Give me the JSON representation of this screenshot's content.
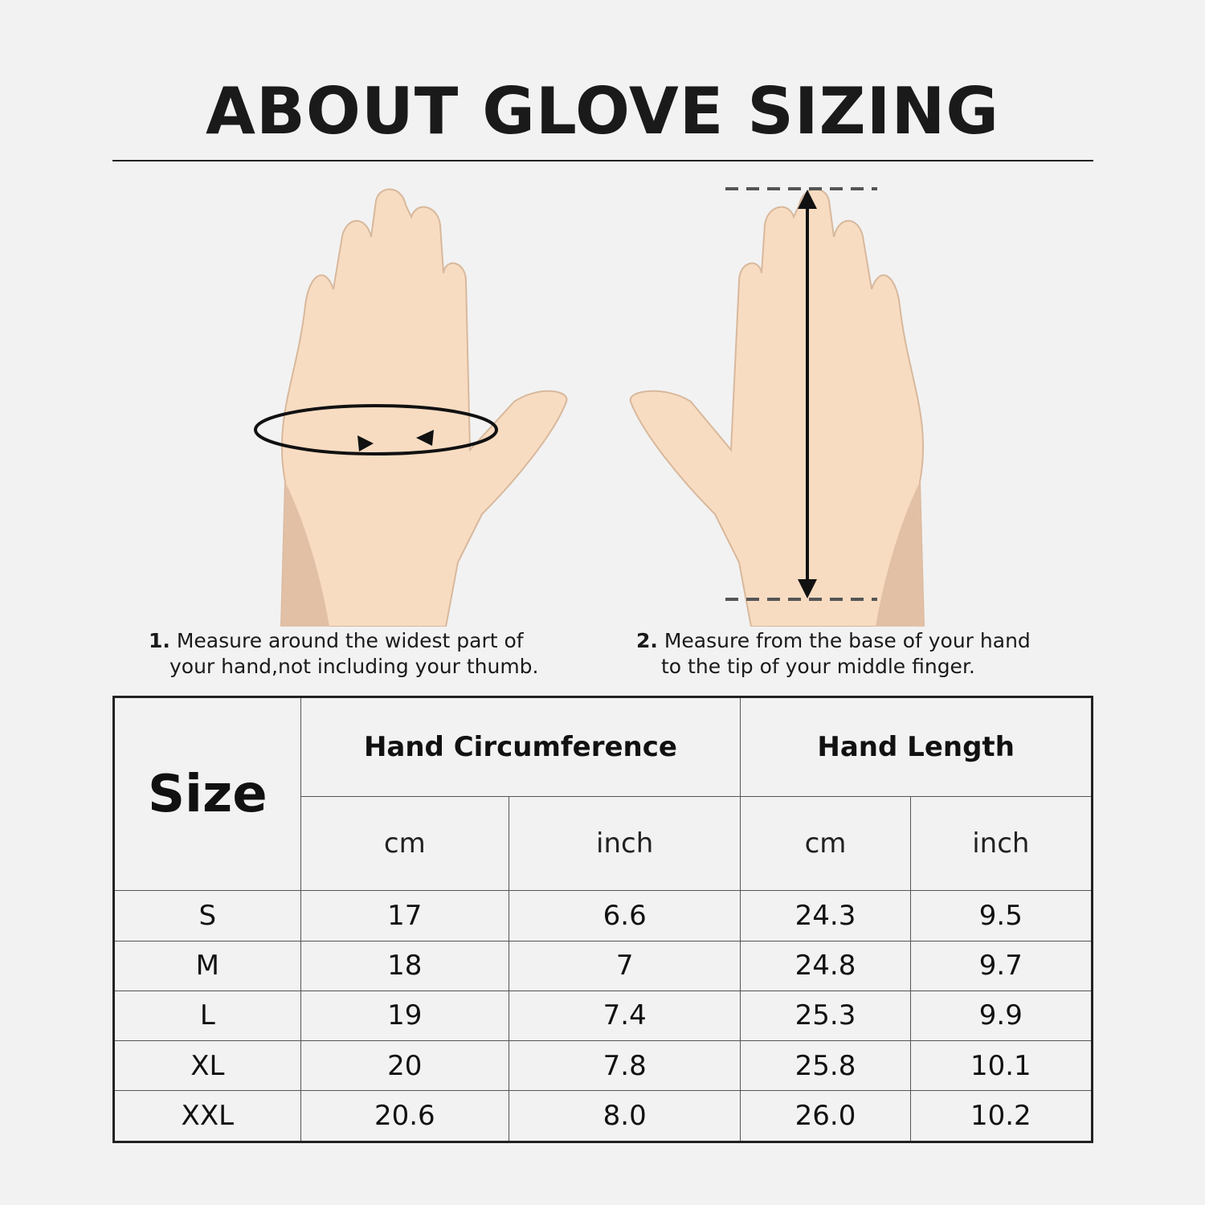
{
  "title": "ABOUT GLOVE SIZING",
  "colors": {
    "background": "#f2f2f2",
    "skin": "#f8dcc2",
    "skin_shadow": "#e2c0a6",
    "text": "#1a1a1a"
  },
  "instructions": [
    {
      "number": "1.",
      "line1": "Measure around the widest part of",
      "line2": "your hand,not including your thumb."
    },
    {
      "number": "2.",
      "line1": "Measure from the base of your hand",
      "line2": "to the tip of your middle finger."
    }
  ],
  "table": {
    "size_header": "Size",
    "groups": [
      "Hand Circumference",
      "Hand Length"
    ],
    "units": [
      "cm",
      "inch",
      "cm",
      "inch"
    ],
    "rows": [
      {
        "size": "S",
        "circ_cm": "17",
        "circ_in": "6.6",
        "len_cm": "24.3",
        "len_in": "9.5"
      },
      {
        "size": "M",
        "circ_cm": "18",
        "circ_in": "7",
        "len_cm": "24.8",
        "len_in": "9.7"
      },
      {
        "size": "L",
        "circ_cm": "19",
        "circ_in": "7.4",
        "len_cm": "25.3",
        "len_in": "9.9"
      },
      {
        "size": "XL",
        "circ_cm": "20",
        "circ_in": "7.8",
        "len_cm": "25.8",
        "len_in": "10.1"
      },
      {
        "size": "XXL",
        "circ_cm": "20.6",
        "circ_in": "8.0",
        "len_cm": "26.0",
        "len_in": "10.2"
      }
    ]
  }
}
